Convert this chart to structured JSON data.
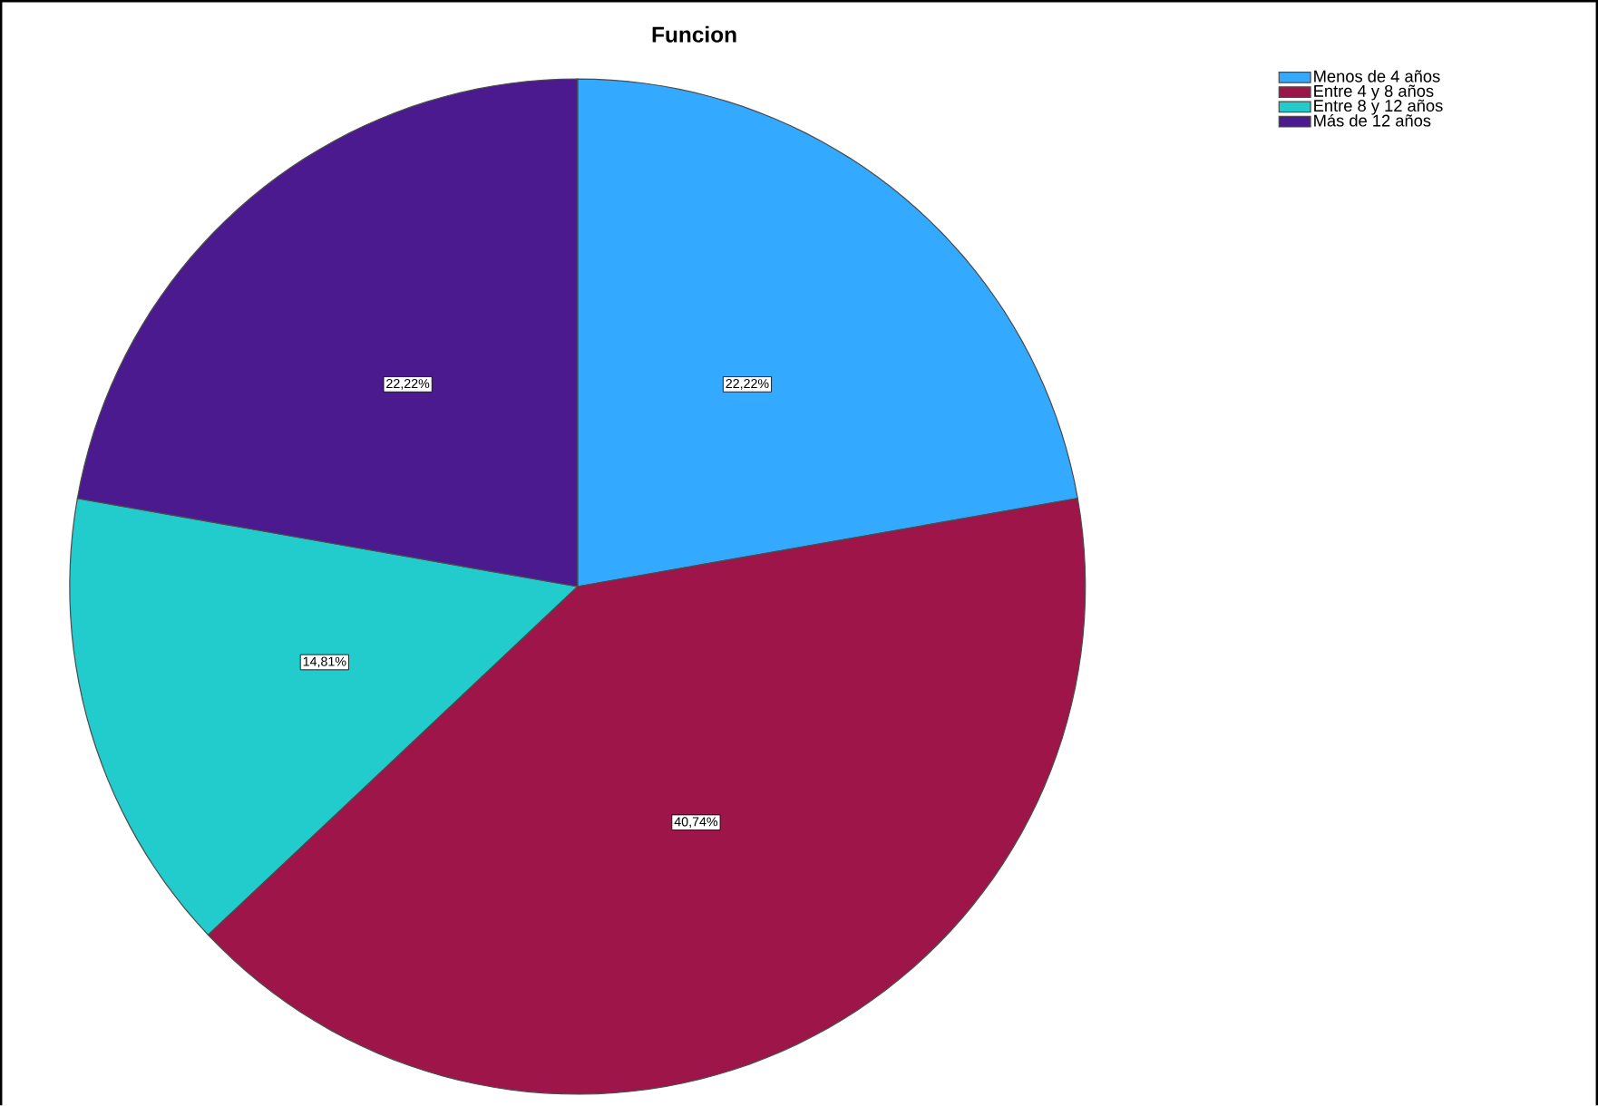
{
  "chart_data": {
    "type": "pie",
    "title": "Funcion",
    "categories": [
      "Menos de 4 años",
      "Entre 4 y 8 años",
      "Entre 8 y 12 años",
      "Más de 12 años"
    ],
    "values": [
      22.22,
      40.74,
      14.81,
      22.22
    ],
    "value_labels": [
      "22,22%",
      "40,74%",
      "14,81%",
      "22,22%"
    ],
    "colors": [
      "#33aaff",
      "#9e1549",
      "#22cccc",
      "#4b1a8f"
    ],
    "legend": "top right"
  }
}
